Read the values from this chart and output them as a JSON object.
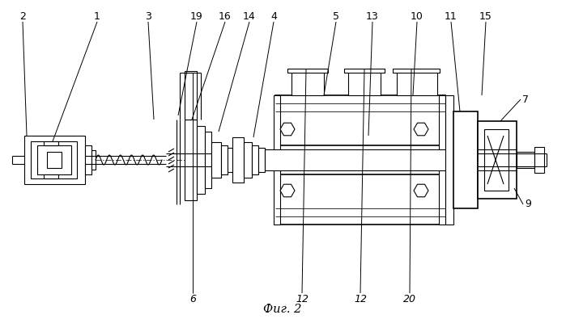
{
  "title": "Фиг. 2",
  "bg_color": "#ffffff",
  "line_color": "#000000",
  "fig_width": 6.99,
  "fig_height": 3.95,
  "dpi": 100
}
